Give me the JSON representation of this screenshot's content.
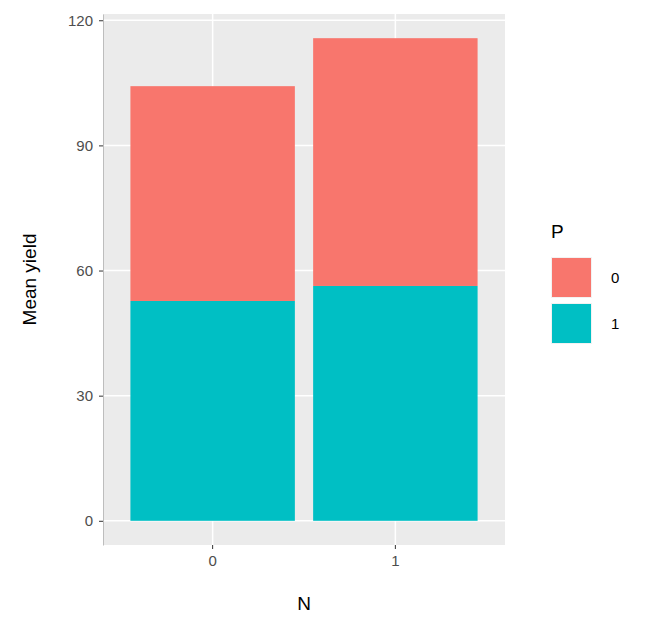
{
  "chart_data": {
    "type": "bar",
    "stacked": true,
    "x_label": "N",
    "y_label": "Mean yield",
    "legend_title": "P",
    "categories": [
      "0",
      "1"
    ],
    "series": [
      {
        "name": "0",
        "color": "#F8766D",
        "values": [
          51.5,
          59.4
        ]
      },
      {
        "name": "1",
        "color": "#00BFC4",
        "values": [
          52.7,
          56.3
        ]
      }
    ],
    "ylim": [
      -5.8,
      121.5
    ],
    "yticks": [
      0,
      30,
      60,
      90,
      120
    ],
    "grid": true,
    "legend": "right"
  }
}
